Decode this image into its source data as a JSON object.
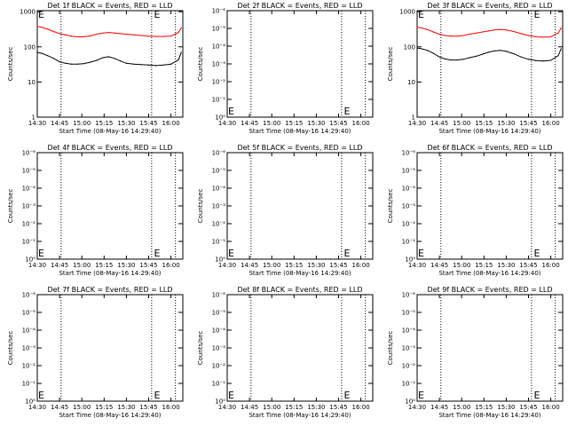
{
  "chart_data": [
    {
      "type": "line",
      "title": "Det 1f BLACK = Events, RED = LLD",
      "xlabel": "Start Time (08-May-16 14:29:40)",
      "ylabel": "Counts/sec",
      "yscale": "log",
      "xlim": [
        "14:30",
        "16:08"
      ],
      "x_tick_labels": [
        "14:30",
        "14:45",
        "15:00",
        "15:15",
        "15:30",
        "15:45",
        "16:00"
      ],
      "y_tick_labels": [
        "1",
        "10",
        "100",
        "1000"
      ],
      "ylim": [
        1,
        1200
      ],
      "vertical_dotted_lines_at": [
        "14:46",
        "15:47",
        "16:03"
      ],
      "marker_text": "E",
      "marker_at": [
        "14:30",
        "15:48"
      ],
      "series": [
        {
          "color": "#ff0000",
          "x": [
            "14:30",
            "14:33",
            "14:37",
            "14:41",
            "14:45",
            "14:49",
            "14:53",
            "14:57",
            "15:01",
            "15:05",
            "15:10",
            "15:14",
            "15:18",
            "15:22",
            "15:26",
            "15:30",
            "15:35",
            "15:40",
            "15:45",
            "15:50",
            "15:55",
            "16:00",
            "16:05",
            "16:07"
          ],
          "values": [
            420,
            400,
            350,
            300,
            260,
            240,
            220,
            210,
            210,
            220,
            250,
            270,
            280,
            270,
            260,
            250,
            240,
            230,
            220,
            215,
            215,
            220,
            280,
            380
          ]
        },
        {
          "color": "#000000",
          "x": [
            "14:30",
            "14:33",
            "14:37",
            "14:41",
            "14:45",
            "14:49",
            "14:53",
            "14:57",
            "15:01",
            "15:05",
            "15:10",
            "15:14",
            "15:18",
            "15:22",
            "15:26",
            "15:30",
            "15:35",
            "15:40",
            "15:45",
            "15:50",
            "15:55",
            "16:00",
            "16:05",
            "16:07"
          ],
          "values": [
            75,
            70,
            60,
            50,
            40,
            36,
            34,
            34,
            35,
            38,
            44,
            52,
            56,
            50,
            42,
            36,
            34,
            33,
            32,
            31,
            32,
            34,
            45,
            75
          ]
        }
      ]
    },
    {
      "type": "line",
      "title": "Det 2f BLACK = Events, RED = LLD",
      "xlabel": "Start Time (08-May-16 14:29:40)",
      "ylabel": "Counts/sec",
      "yscale": "log",
      "xlim": [
        "14:30",
        "16:08"
      ],
      "x_tick_labels": [
        "14:30",
        "14:45",
        "15:00",
        "15:15",
        "15:30",
        "15:45",
        "16:00"
      ],
      "y_tick_labels": [
        "10⁰",
        "10⁻¹",
        "10⁻²",
        "10⁻³",
        "10⁻⁴",
        "10⁻⁵",
        "10⁻⁶"
      ],
      "vertical_dotted_lines_at": [
        "14:46",
        "15:47",
        "16:03"
      ],
      "marker_text": "E",
      "marker_at": [
        "14:30",
        "15:48"
      ],
      "series": []
    },
    {
      "type": "line",
      "title": "Det 3f BLACK = Events, RED = LLD",
      "xlabel": "Start Time (08-May-16 14:29:40)",
      "ylabel": "Counts/sec",
      "yscale": "log",
      "xlim": [
        "14:30",
        "16:08"
      ],
      "x_tick_labels": [
        "14:30",
        "14:45",
        "15:00",
        "15:15",
        "15:30",
        "15:45",
        "16:00"
      ],
      "y_tick_labels": [
        "1",
        "10",
        "100",
        "1000"
      ],
      "ylim": [
        1,
        1200
      ],
      "vertical_dotted_lines_at": [
        "14:46",
        "15:47",
        "16:03"
      ],
      "marker_text": "E",
      "marker_at": [
        "14:30",
        "15:48"
      ],
      "series": [
        {
          "color": "#ff0000",
          "x": [
            "14:30",
            "14:33",
            "14:37",
            "14:41",
            "14:45",
            "14:49",
            "14:53",
            "14:57",
            "15:01",
            "15:05",
            "15:10",
            "15:14",
            "15:18",
            "15:22",
            "15:26",
            "15:30",
            "15:35",
            "15:40",
            "15:45",
            "15:50",
            "15:55",
            "16:00",
            "16:05",
            "16:07"
          ],
          "values": [
            400,
            380,
            340,
            290,
            250,
            230,
            220,
            220,
            230,
            250,
            270,
            290,
            310,
            330,
            340,
            330,
            300,
            260,
            230,
            210,
            205,
            210,
            270,
            380
          ]
        },
        {
          "color": "#000000",
          "x": [
            "14:30",
            "14:33",
            "14:37",
            "14:41",
            "14:45",
            "14:49",
            "14:53",
            "14:57",
            "15:01",
            "15:05",
            "15:10",
            "15:14",
            "15:18",
            "15:22",
            "15:26",
            "15:30",
            "15:35",
            "15:40",
            "15:45",
            "15:50",
            "15:55",
            "16:00",
            "16:05",
            "16:07"
          ],
          "values": [
            100,
            95,
            85,
            70,
            55,
            48,
            45,
            45,
            47,
            52,
            58,
            66,
            75,
            82,
            85,
            80,
            68,
            55,
            47,
            43,
            42,
            44,
            60,
            95
          ]
        }
      ]
    },
    {
      "type": "line",
      "title": "Det 4f BLACK = Events, RED = LLD",
      "xlabel": "Start Time (08-May-16 14:29:40)",
      "ylabel": "Counts/sec",
      "yscale": "log",
      "xlim": [
        "14:30",
        "16:08"
      ],
      "x_tick_labels": [
        "14:30",
        "14:45",
        "15:00",
        "15:15",
        "15:30",
        "15:45",
        "16:00"
      ],
      "y_tick_labels": [
        "10⁰",
        "10⁻¹",
        "10⁻²",
        "10⁻³",
        "10⁻⁴",
        "10⁻⁵",
        "10⁻⁶"
      ],
      "vertical_dotted_lines_at": [
        "14:46",
        "15:47",
        "16:03"
      ],
      "marker_text": "E",
      "marker_at": [
        "14:30",
        "15:48"
      ],
      "series": []
    },
    {
      "type": "line",
      "title": "Det 5f BLACK = Events, RED = LLD",
      "xlabel": "Start Time (08-May-16 14:29:40)",
      "ylabel": "Counts/sec",
      "yscale": "log",
      "xlim": [
        "14:30",
        "16:08"
      ],
      "x_tick_labels": [
        "14:30",
        "14:45",
        "15:00",
        "15:15",
        "15:30",
        "15:45",
        "16:00"
      ],
      "y_tick_labels": [
        "10⁰",
        "10⁻¹",
        "10⁻²",
        "10⁻³",
        "10⁻⁴",
        "10⁻⁵",
        "10⁻⁶"
      ],
      "vertical_dotted_lines_at": [
        "14:46",
        "15:47",
        "16:03"
      ],
      "marker_text": "E",
      "marker_at": [
        "14:30",
        "15:48"
      ],
      "series": []
    },
    {
      "type": "line",
      "title": "Det 6f BLACK = Events, RED = LLD",
      "xlabel": "Start Time (08-May-16 14:29:40)",
      "ylabel": "Counts/sec",
      "yscale": "log",
      "xlim": [
        "14:30",
        "16:08"
      ],
      "x_tick_labels": [
        "14:30",
        "14:45",
        "15:00",
        "15:15",
        "15:30",
        "15:45",
        "16:00"
      ],
      "y_tick_labels": [
        "10⁰",
        "10⁻¹",
        "10⁻²",
        "10⁻³",
        "10⁻⁴",
        "10⁻⁵",
        "10⁻⁶"
      ],
      "vertical_dotted_lines_at": [
        "14:46",
        "15:47",
        "16:03"
      ],
      "marker_text": "E",
      "marker_at": [
        "14:30",
        "15:48"
      ],
      "series": []
    },
    {
      "type": "line",
      "title": "Det 7f BLACK = Events, RED = LLD",
      "xlabel": "Start Time (08-May-16 14:29:40)",
      "ylabel": "Counts/sec",
      "yscale": "log",
      "xlim": [
        "14:30",
        "16:08"
      ],
      "x_tick_labels": [
        "14:30",
        "14:45",
        "15:00",
        "15:15",
        "15:30",
        "15:45",
        "16:00"
      ],
      "y_tick_labels": [
        "10⁰",
        "10⁻¹",
        "10⁻²",
        "10⁻³",
        "10⁻⁴",
        "10⁻⁵",
        "10⁻⁶"
      ],
      "vertical_dotted_lines_at": [
        "14:46",
        "15:47",
        "16:03"
      ],
      "marker_text": "E",
      "marker_at": [
        "14:30",
        "15:48"
      ],
      "series": []
    },
    {
      "type": "line",
      "title": "Det 8f BLACK = Events, RED = LLD",
      "xlabel": "Start Time (08-May-16 14:29:40)",
      "ylabel": "Counts/sec",
      "yscale": "log",
      "xlim": [
        "14:30",
        "16:08"
      ],
      "x_tick_labels": [
        "14:30",
        "14:45",
        "15:00",
        "15:15",
        "15:30",
        "15:45",
        "16:00"
      ],
      "y_tick_labels": [
        "10⁰",
        "10⁻¹",
        "10⁻²",
        "10⁻³",
        "10⁻⁴",
        "10⁻⁵",
        "10⁻⁶"
      ],
      "vertical_dotted_lines_at": [
        "14:46",
        "15:47",
        "16:03"
      ],
      "marker_text": "E",
      "marker_at": [
        "14:30",
        "15:48"
      ],
      "series": []
    },
    {
      "type": "line",
      "title": "Det 9f BLACK = Events, RED = LLD",
      "xlabel": "Start Time (08-May-16 14:29:40)",
      "ylabel": "Counts/sec",
      "yscale": "log",
      "xlim": [
        "14:30",
        "16:08"
      ],
      "x_tick_labels": [
        "14:30",
        "14:45",
        "15:00",
        "15:15",
        "15:30",
        "15:45",
        "16:00"
      ],
      "y_tick_labels": [
        "10⁰",
        "10⁻¹",
        "10⁻²",
        "10⁻³",
        "10⁻⁴",
        "10⁻⁵",
        "10⁻⁶"
      ],
      "vertical_dotted_lines_at": [
        "14:46",
        "15:47",
        "16:03"
      ],
      "marker_text": "E",
      "marker_at": [
        "14:30",
        "15:48"
      ],
      "series": []
    }
  ]
}
